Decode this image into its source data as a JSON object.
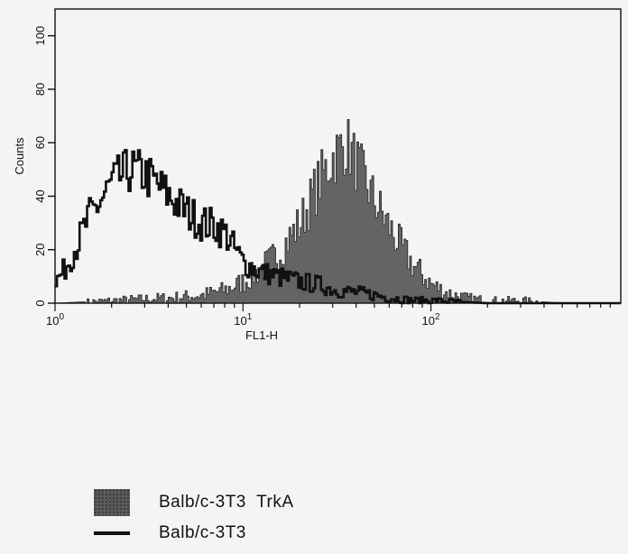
{
  "chart_data": {
    "type": "area",
    "xlabel": "FL1-H",
    "ylabel": "Counts",
    "x_scale": "log",
    "xlim": [
      1,
      1024
    ],
    "ylim": [
      0,
      110
    ],
    "x_ticks": [
      {
        "value": 1,
        "base": "10",
        "exp": "0"
      },
      {
        "value": 10,
        "base": "10",
        "exp": "1"
      },
      {
        "value": 100,
        "base": "10",
        "exp": "2"
      }
    ],
    "y_ticks": [
      0,
      20,
      40,
      60,
      80,
      100
    ],
    "grid": false,
    "series": [
      {
        "name": "Balb/c-3T3  TrkA",
        "style": "filled",
        "color": "#4a4a4a",
        "x": [
          1,
          2,
          4,
          6,
          8,
          10,
          12,
          15,
          20,
          25,
          30,
          35,
          40,
          50,
          60,
          70,
          80,
          100,
          120,
          150,
          200,
          300,
          500,
          1000
        ],
        "y": [
          0,
          1,
          2,
          3,
          5,
          8,
          12,
          18,
          30,
          45,
          55,
          60,
          52,
          38,
          28,
          20,
          14,
          7,
          4,
          2,
          1,
          1,
          0,
          0
        ]
      },
      {
        "name": "Balb/c-3T3",
        "style": "line",
        "color": "#111111",
        "x": [
          1,
          1.1,
          1.3,
          1.5,
          1.8,
          2.0,
          2.5,
          3.0,
          3.5,
          4.0,
          5.0,
          6.0,
          7.0,
          8.0,
          9.0,
          10,
          12,
          15,
          20,
          25,
          30,
          40,
          50,
          60,
          80,
          100,
          200,
          1000
        ],
        "y": [
          8,
          12,
          22,
          32,
          40,
          45,
          50,
          48,
          44,
          40,
          34,
          30,
          29,
          26,
          20,
          15,
          12,
          10,
          8,
          7,
          5,
          4,
          3,
          2,
          1,
          1,
          0,
          0
        ]
      }
    ]
  },
  "legend": {
    "filled_label": "Balb/c-3T3  TrkA",
    "line_label": "Balb/c-3T3"
  }
}
